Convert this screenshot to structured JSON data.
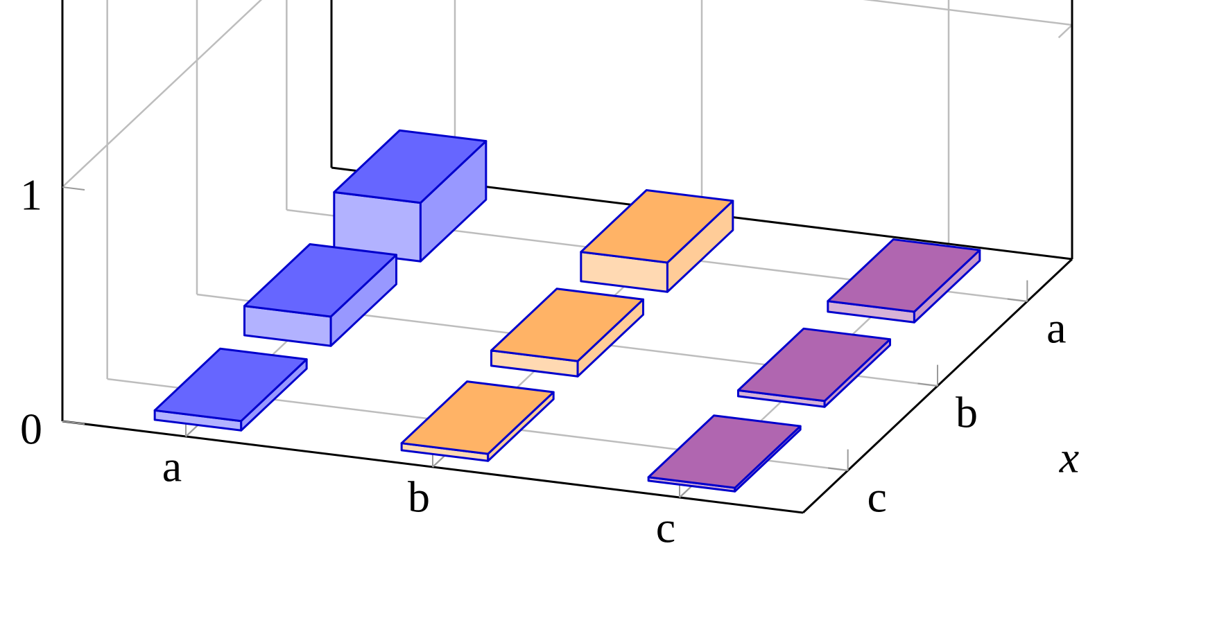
{
  "chart_data": {
    "type": "bar3d",
    "categories": [
      "a",
      "b",
      "c"
    ],
    "depth_categories": [
      "a",
      "b",
      "c"
    ],
    "depth_label": "x",
    "series": [
      {
        "color": "#6666ff",
        "values": [
          0.25,
          0.125,
          0.04
        ]
      },
      {
        "color": "#ffb366",
        "values": [
          0.125,
          0.065,
          0.03
        ]
      },
      {
        "color": "#b066b0",
        "values": [
          0.045,
          0.025,
          0.015
        ]
      }
    ],
    "edge_color": "#0000cc",
    "zlim": [
      0,
      2
    ],
    "zticks": [
      0,
      1
    ],
    "grid": true
  }
}
